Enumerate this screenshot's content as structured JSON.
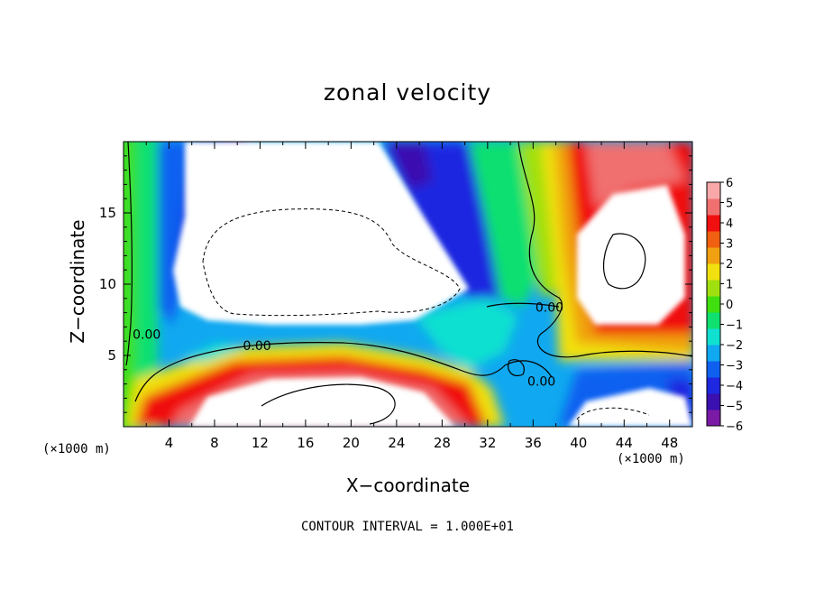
{
  "chart_data": {
    "type": "heatmap",
    "title": "zonal velocity",
    "xlabel": "X−coordinate",
    "ylabel": "Z−coordinate",
    "x_unit_label_left": "(×1000 m)",
    "x_unit_label_right": "(×1000 m)",
    "footnote": "CONTOUR INTERVAL = 1.000E+01",
    "xlim": [
      0,
      50
    ],
    "ylim": [
      0,
      20
    ],
    "x_ticks": [
      "4",
      "8",
      "12",
      "16",
      "20",
      "24",
      "28",
      "32",
      "36",
      "40",
      "44",
      "48"
    ],
    "y_ticks": [
      "5",
      "10",
      "15"
    ],
    "colorbar": {
      "range": [
        -6,
        6
      ],
      "tick_labels": [
        "6",
        "5",
        "4",
        "3",
        "2",
        "1",
        "0",
        "−1",
        "−2",
        "−3",
        "−4",
        "−5",
        "−6"
      ],
      "colors": [
        "#7a1aa6",
        "#3a10b0",
        "#1e28e0",
        "#1060f0",
        "#10a8f0",
        "#10e0d0",
        "#10e070",
        "#40e010",
        "#a0e010",
        "#f0e010",
        "#f0a010",
        "#f06010",
        "#f01010",
        "#f07070",
        "#f8a8a8"
      ]
    },
    "contour_labels": [
      {
        "text": "0.00",
        "x": 0.8,
        "y": 6.5
      },
      {
        "text": "0.00",
        "x": 10.5,
        "y": 5.7
      },
      {
        "text": "0.00",
        "x": 36.2,
        "y": 8.4
      },
      {
        "text": "0.00",
        "x": 35.5,
        "y": 3.2
      }
    ]
  }
}
